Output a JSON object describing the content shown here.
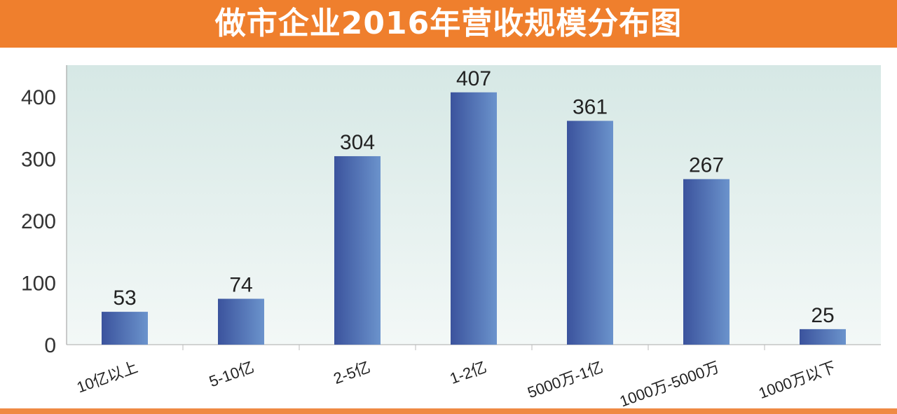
{
  "chart_data": {
    "type": "bar",
    "title": "做市企业2016年营收规模分布图",
    "categories": [
      "10亿以上",
      "5-10亿",
      "2-5亿",
      "1-2亿",
      "5000万-1亿",
      "1000万-5000万",
      "1000万以下"
    ],
    "values": [
      53,
      74,
      304,
      407,
      361,
      267,
      25
    ],
    "yticks": [
      0,
      100,
      200,
      300,
      400
    ],
    "ylim": [
      0,
      450
    ],
    "xlabel": "",
    "ylabel": "",
    "grid": false,
    "legend": "none",
    "colors": {
      "header": "#ef7f2d",
      "bar_dark": "#3b539d",
      "bar_light": "#6b93cc",
      "plot_bg": "#d6e8e5"
    }
  }
}
